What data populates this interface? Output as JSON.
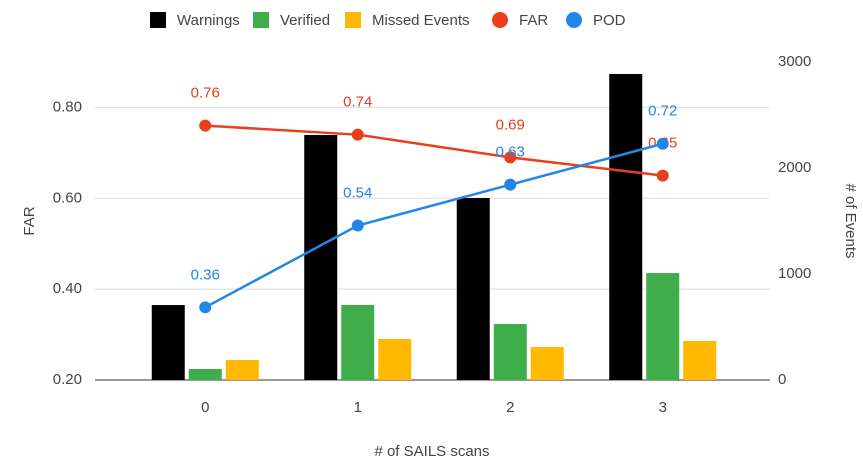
{
  "chart_data": {
    "type": "bar",
    "categories": [
      "0",
      "1",
      "2",
      "3"
    ],
    "xlabel": "# of SAILS scans",
    "ylabel": "FAR",
    "y2label": "# of Events",
    "ylim": [
      0.2,
      0.9
    ],
    "yticks": [
      {
        "value": 0.2,
        "label": "0.20"
      },
      {
        "value": 0.4,
        "label": "0.40"
      },
      {
        "value": 0.6,
        "label": "0.60"
      },
      {
        "value": 0.8,
        "label": "0.80"
      }
    ],
    "y2lim": [
      0,
      3000
    ],
    "y2ticks": [
      0,
      1000,
      2000,
      3000
    ],
    "grid": true,
    "legend": "top",
    "series": [
      {
        "name": "Warnings",
        "type": "bar",
        "axis": "y2",
        "color": "#000000",
        "values": [
          707,
          2311,
          1717,
          2887
        ]
      },
      {
        "name": "Verified",
        "type": "bar",
        "axis": "y2",
        "color": "#3ead4a",
        "values": [
          104,
          708,
          528,
          1009
        ]
      },
      {
        "name": "Missed Events",
        "type": "bar",
        "axis": "y2",
        "color": "#ffb800",
        "values": [
          189,
          387,
          311,
          368
        ]
      },
      {
        "name": "FAR",
        "type": "line",
        "color": "#e8401c",
        "values": [
          0.76,
          0.74,
          0.69,
          0.65
        ]
      },
      {
        "name": "POD",
        "type": "line",
        "color": "#2286e8",
        "values": [
          0.36,
          0.54,
          0.63,
          0.72
        ]
      }
    ]
  }
}
